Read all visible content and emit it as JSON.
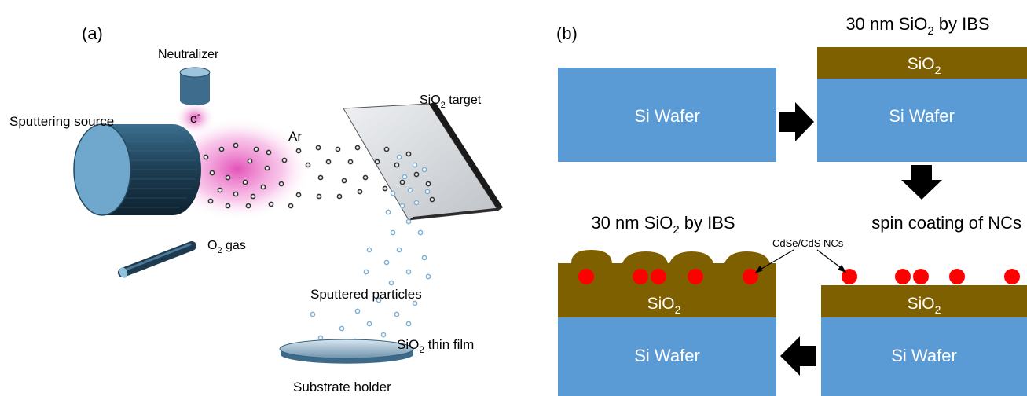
{
  "panel_a": {
    "label": "(a)",
    "neutralizer": "Neutralizer",
    "electron": "e",
    "electron_sup": "-",
    "sputtering_source": "Sputtering source",
    "ar": "Ar",
    "target_pre": "SiO",
    "target_sub": "2",
    "target_post": " target",
    "gas_pre": "O",
    "gas_sub": "2",
    "gas_post": " gas",
    "sputtered_particles": "Sputtered particles",
    "film_pre": "SiO",
    "film_sub": "2",
    "film_post": " thin film",
    "substrate_holder": "Substrate holder"
  },
  "panel_b": {
    "label": "(b)",
    "step1_wafer": "Si Wafer",
    "step2_title_pre": "30 nm SiO",
    "step2_title_sub": "2",
    "step2_title_post": " by IBS",
    "step2_layer_pre": "SiO",
    "step2_layer_sub": "2",
    "step2_wafer": "Si Wafer",
    "step3_title": "spin coating of NCs",
    "step3_layer_pre": "SiO",
    "step3_layer_sub": "2",
    "step3_wafer": "Si Wafer",
    "step4_title_pre": "30 nm SiO",
    "step4_title_sub": "2",
    "step4_title_post": " by IBS",
    "step4_layer_pre": "SiO",
    "step4_layer_sub": "2",
    "step4_wafer": "Si Wafer",
    "nc_label": "CdSe/CdS NCs"
  },
  "colors": {
    "wafer": "#5b9bd5",
    "oxide": "#7f6000",
    "nanocrystal": "#ff0000",
    "arrow": "#000000",
    "plasma": "#e040b0"
  }
}
